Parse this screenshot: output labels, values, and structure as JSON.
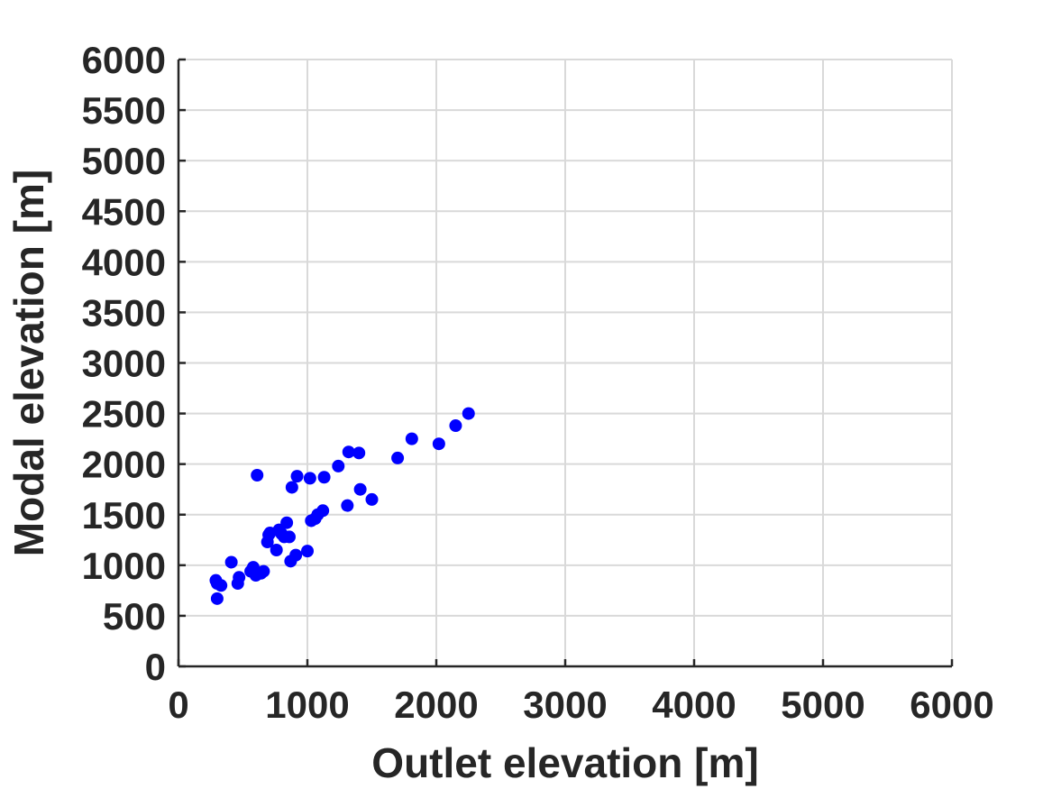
{
  "chart_data": {
    "type": "scatter",
    "title": "",
    "xlabel": "Outlet elevation [m]",
    "ylabel": "Modal elevation [m]",
    "xlim": [
      0,
      6000
    ],
    "ylim": [
      0,
      6000
    ],
    "xticks": [
      0,
      1000,
      2000,
      3000,
      4000,
      5000,
      6000
    ],
    "yticks": [
      0,
      500,
      1000,
      1500,
      2000,
      2500,
      3000,
      3500,
      4000,
      4500,
      5000,
      5500,
      6000
    ],
    "xtick_labels": [
      "0",
      "1000",
      "2000",
      "3000",
      "4000",
      "5000",
      "6000"
    ],
    "ytick_labels": [
      "0",
      "500",
      "1000",
      "1500",
      "2000",
      "2500",
      "3000",
      "3500",
      "4000",
      "4500",
      "5000",
      "5500",
      "6000"
    ],
    "grid": true,
    "series": [
      {
        "color": "#0000ff",
        "x": [
          290,
          300,
          330,
          300,
          410,
          460,
          470,
          560,
          580,
          600,
          610,
          640,
          660,
          690,
          700,
          710,
          760,
          780,
          800,
          820,
          840,
          860,
          870,
          880,
          910,
          920,
          1000,
          1020,
          1030,
          1060,
          1080,
          1120,
          1130,
          1240,
          1310,
          1320,
          1400,
          1410,
          1500,
          1700,
          1810,
          2020,
          2150,
          2250
        ],
        "y": [
          850,
          820,
          800,
          670,
          1030,
          820,
          880,
          940,
          980,
          900,
          1890,
          920,
          940,
          1230,
          1300,
          1320,
          1150,
          1350,
          1310,
          1280,
          1420,
          1280,
          1040,
          1770,
          1100,
          1880,
          1140,
          1860,
          1440,
          1460,
          1500,
          1540,
          1870,
          1980,
          1590,
          2120,
          2110,
          1750,
          1650,
          2060,
          2250,
          2200,
          2380,
          2500
        ]
      }
    ]
  }
}
